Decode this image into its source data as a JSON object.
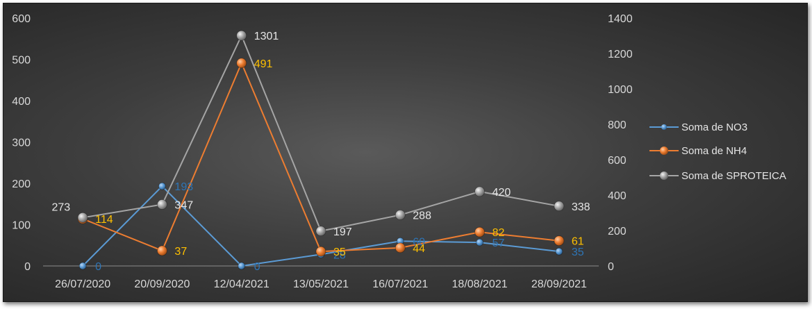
{
  "chart_data": {
    "type": "line",
    "categories": [
      "26/07/2020",
      "20/09/2020",
      "12/04/2021",
      "13/05/2021",
      "16/07/2021",
      "18/08/2021",
      "28/09/2021"
    ],
    "y_left": {
      "min": 0,
      "max": 600,
      "step": 100,
      "ticks": [
        "0",
        "100",
        "200",
        "300",
        "400",
        "500",
        "600"
      ]
    },
    "y_right": {
      "min": 0,
      "max": 1400,
      "step": 200,
      "ticks": [
        "0",
        "200",
        "400",
        "600",
        "800",
        "1000",
        "1200",
        "1400"
      ]
    },
    "grid": false,
    "legend_position": "right",
    "series": [
      {
        "name": "Soma de NO3",
        "axis": "left",
        "color": "#5b9bd5",
        "label_color": "#2e75b6",
        "values": [
          0,
          193,
          0,
          28,
          60,
          57,
          35
        ],
        "labels": [
          "0",
          "193",
          "0",
          "28",
          "60",
          "57",
          "35"
        ]
      },
      {
        "name": "Soma de NH4",
        "axis": "left",
        "color": "#ed7d31",
        "label_color": "#ffc000",
        "values": [
          114,
          37,
          491,
          35,
          44,
          82,
          61
        ],
        "labels": [
          "114",
          "37",
          "491",
          "35",
          "44",
          "82",
          "61"
        ]
      },
      {
        "name": "Soma de SPROTEICA",
        "axis": "right",
        "color": "#a5a5a5",
        "label_color": "#e6e6e6",
        "values": [
          273,
          347,
          1301,
          197,
          288,
          420,
          338
        ],
        "labels": [
          "273",
          "347",
          "1301",
          "197",
          "288",
          "420",
          "338"
        ]
      }
    ]
  }
}
